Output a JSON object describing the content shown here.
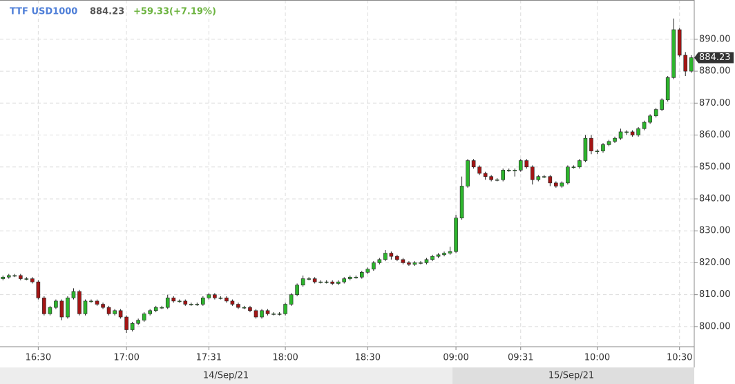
{
  "header": {
    "symbol": "TTF USD1000",
    "price": "884.23",
    "change": "+59.33(+7.19%)"
  },
  "chart_data": {
    "type": "candlestick",
    "categories": [
      null,
      null,
      null,
      null,
      null,
      null,
      "16:30",
      null,
      null,
      null,
      null,
      null,
      null,
      null,
      null,
      null,
      null,
      null,
      null,
      null,
      null,
      "17:00",
      null,
      null,
      null,
      null,
      null,
      null,
      null,
      null,
      null,
      null,
      null,
      null,
      null,
      "17:31",
      null,
      null,
      null,
      null,
      null,
      null,
      null,
      null,
      null,
      null,
      null,
      null,
      "18:00",
      null,
      null,
      null,
      null,
      null,
      null,
      null,
      null,
      null,
      null,
      null,
      null,
      null,
      "18:30",
      null,
      null,
      null,
      null,
      null,
      null,
      null,
      null,
      null,
      null,
      null,
      null,
      null,
      null,
      "09:00",
      null,
      null,
      null,
      null,
      null,
      null,
      null,
      null,
      null,
      null,
      "09:31",
      null,
      null,
      null,
      null,
      null,
      null,
      null,
      null,
      null,
      null,
      null,
      null,
      "10:00",
      null,
      null,
      null,
      null,
      null,
      null,
      null,
      null,
      null,
      null,
      null,
      null,
      null,
      "10:30",
      null,
      null
    ],
    "open": [
      815,
      815.5,
      816,
      816,
      815,
      815,
      814,
      809,
      804,
      806,
      808,
      803,
      809,
      811,
      804,
      808,
      808,
      807,
      806,
      804,
      805,
      803,
      799,
      801,
      802,
      804,
      805,
      806,
      806,
      809,
      808,
      808,
      807,
      807,
      807,
      809,
      810,
      809,
      809,
      808,
      807,
      806,
      806,
      805,
      803,
      805,
      804,
      804,
      804,
      807,
      810,
      813,
      815,
      815,
      814,
      814,
      814,
      813.5,
      814,
      815,
      815.5,
      815.5,
      817,
      818,
      820,
      821,
      823,
      822,
      821,
      820,
      819.5,
      820,
      820,
      821,
      822,
      822.5,
      823,
      823.5,
      834,
      844,
      852,
      850,
      848,
      847,
      846,
      846,
      849,
      849,
      849,
      852,
      850,
      846,
      847,
      847,
      845,
      844,
      845,
      850,
      850,
      852,
      859,
      855,
      855,
      857,
      858,
      859,
      861,
      861,
      860,
      862,
      864,
      866,
      868,
      871,
      878,
      893,
      885,
      880
    ],
    "high": [
      816,
      816.5,
      816.5,
      816.5,
      815.5,
      815.5,
      814.5,
      809.5,
      806.5,
      808.5,
      808.5,
      809.5,
      812,
      811.5,
      808.5,
      808.5,
      808.5,
      807.5,
      806.5,
      805.5,
      805.5,
      803.5,
      801.5,
      802.5,
      804.5,
      805.5,
      806.5,
      806.5,
      810,
      809.5,
      808.5,
      808.5,
      807.5,
      807.5,
      809.5,
      810.5,
      810.5,
      809.5,
      809.5,
      808.5,
      807.5,
      806.5,
      806.5,
      805.5,
      805.5,
      805.5,
      804.5,
      804.5,
      807.5,
      810.5,
      813.5,
      816,
      815.5,
      815.5,
      814.5,
      814.5,
      814.5,
      814.5,
      815.5,
      816,
      816,
      817.5,
      818.5,
      820.5,
      821.5,
      824,
      823.5,
      822.5,
      821.5,
      820.5,
      820.5,
      820.5,
      821.5,
      822.5,
      823,
      823.5,
      825,
      835,
      847,
      852.5,
      852.5,
      850.5,
      848.5,
      847.5,
      846.5,
      849.5,
      849.5,
      849.5,
      852.5,
      852.5,
      850.5,
      847.5,
      847.5,
      847.5,
      845.5,
      845.5,
      850.5,
      850.5,
      852.5,
      860,
      860,
      855.5,
      857.5,
      858.5,
      859.5,
      862,
      861.5,
      861.5,
      862.5,
      864.5,
      866.5,
      868.5,
      871.5,
      878.5,
      896.5,
      893.5,
      886,
      885
    ],
    "low": [
      814.5,
      815,
      815.5,
      814.5,
      814.5,
      813.5,
      808.5,
      803.5,
      803.5,
      805.5,
      802,
      802.5,
      808.5,
      803.5,
      803.5,
      807.5,
      806.5,
      805.5,
      803.5,
      803.5,
      802.5,
      798,
      798.5,
      800.5,
      801.5,
      803.5,
      804.5,
      805.5,
      805.5,
      807.5,
      807.5,
      806.5,
      806.5,
      806.5,
      806.5,
      808.5,
      808.5,
      808.5,
      807.5,
      806.5,
      805.5,
      805.5,
      804.5,
      802.5,
      802.5,
      803.5,
      803.5,
      803.5,
      803.5,
      806.5,
      809.5,
      812.5,
      814.5,
      813.5,
      813.5,
      813.5,
      813,
      813,
      813.5,
      814.5,
      815,
      815,
      816.5,
      817.5,
      819.5,
      820.5,
      821,
      820.5,
      819.5,
      819,
      819,
      819.5,
      819.5,
      820.5,
      821.5,
      822,
      822.5,
      823,
      833.5,
      843.5,
      849.5,
      847.5,
      846,
      845.5,
      845.5,
      845.5,
      848.5,
      847,
      848.5,
      849.5,
      844.5,
      845.5,
      846.5,
      844,
      843.5,
      843.5,
      844.5,
      849.5,
      849.5,
      851.5,
      854,
      854,
      854.5,
      856.5,
      857.5,
      858.5,
      860,
      859.5,
      859.5,
      861.5,
      863.5,
      865.5,
      867.5,
      870.5,
      877.5,
      884.5,
      878.5,
      879.5
    ],
    "close": [
      815.5,
      816,
      816,
      815,
      815,
      814,
      809,
      804,
      806,
      808,
      803,
      809,
      811,
      804,
      808,
      808,
      807,
      806,
      804,
      805,
      803,
      799,
      801,
      802,
      804,
      805,
      806,
      806,
      809,
      808,
      808,
      807,
      807,
      807,
      809,
      810,
      809,
      809,
      808,
      807,
      806,
      806,
      805,
      803,
      805,
      804,
      804,
      804,
      807,
      810,
      813,
      815,
      815,
      814,
      814,
      814,
      813.5,
      814,
      815,
      815.5,
      815.5,
      817,
      818,
      820,
      821,
      823,
      822,
      821,
      820,
      819.5,
      820,
      820,
      821,
      822,
      822.5,
      823,
      823.5,
      834,
      844,
      852,
      850,
      848,
      847,
      846,
      846,
      849,
      849,
      849,
      852,
      850,
      846,
      847,
      847,
      845,
      844,
      845,
      850,
      850,
      852,
      859,
      855,
      855,
      857,
      858,
      859,
      861,
      861,
      860,
      862,
      864,
      866,
      868,
      871,
      878,
      893,
      885,
      880,
      884.23
    ],
    "ylim": [
      793.7,
      902.3
    ],
    "yticks": [
      {
        "value": 800,
        "label": "800.00"
      },
      {
        "value": 810,
        "label": "810.00"
      },
      {
        "value": 820,
        "label": "820.00"
      },
      {
        "value": 830,
        "label": "830.00"
      },
      {
        "value": 840,
        "label": "840.00"
      },
      {
        "value": 850,
        "label": "850.00"
      },
      {
        "value": 860,
        "label": "860.00"
      },
      {
        "value": 870,
        "label": "870.00"
      },
      {
        "value": 880,
        "label": "880.00"
      },
      {
        "value": 890,
        "label": "890.00"
      }
    ],
    "grid": true,
    "up_color": "#2db52d",
    "down_color": "#a31515",
    "date_labels": [
      "14/Sep/21",
      "15/Sep/21"
    ]
  }
}
